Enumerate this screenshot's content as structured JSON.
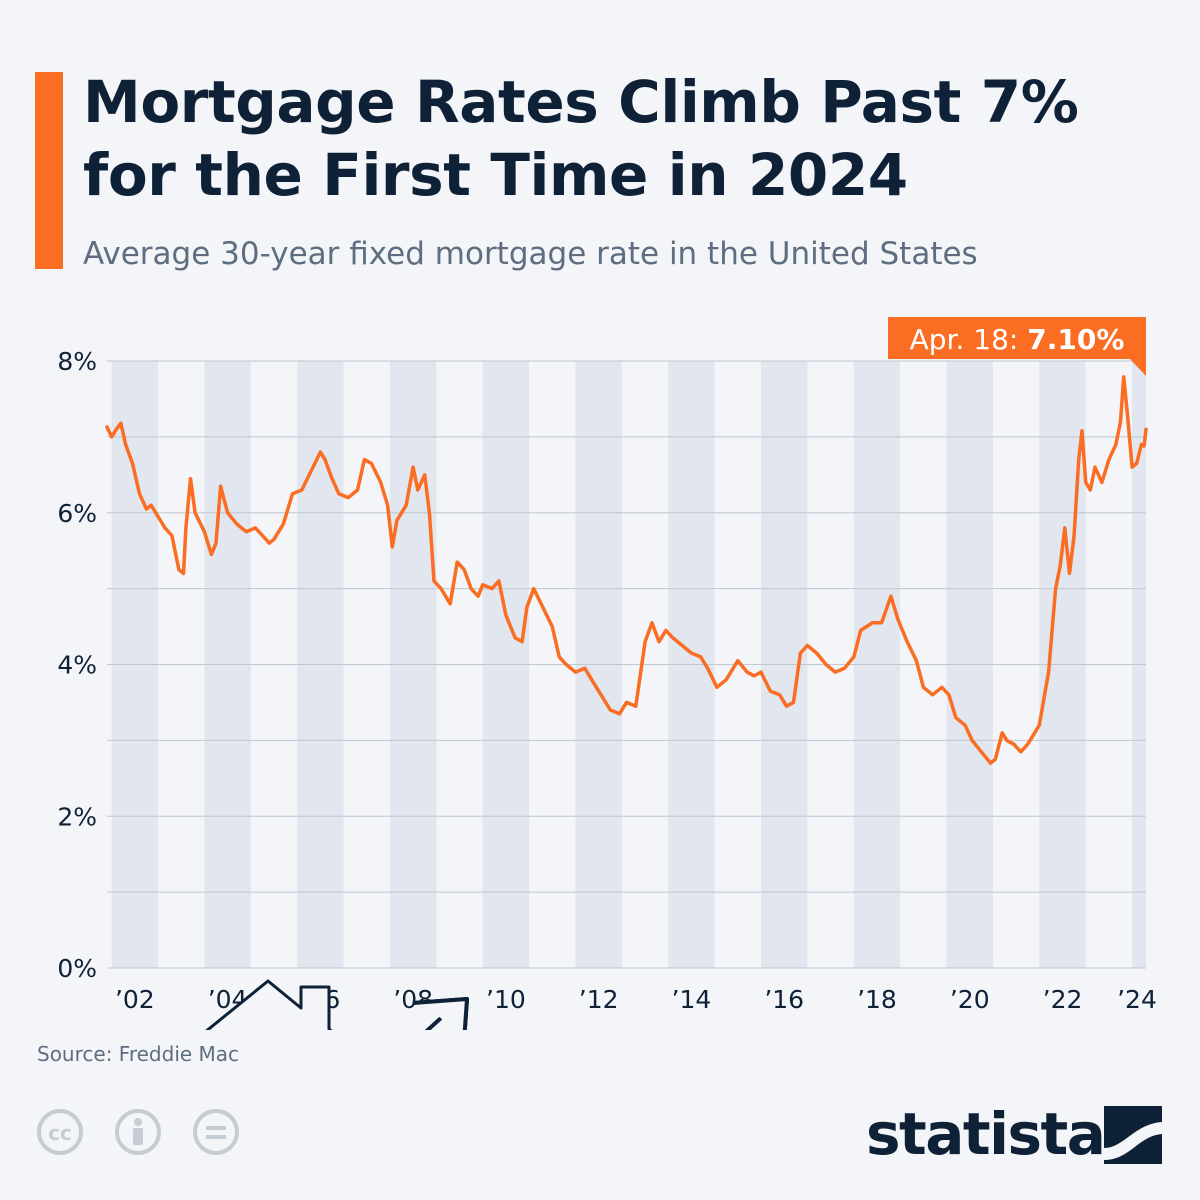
{
  "header": {
    "title": "Mortgage Rates Climb Past 7% for the First Time in 2024",
    "subtitle": "Average 30-year fixed mortgage rate in the United States"
  },
  "footer": {
    "source": "Source: Freddie Mac",
    "brand": "statista",
    "license_icons": [
      "cc-icon",
      "attribution-icon",
      "no-derivatives-icon"
    ]
  },
  "colors": {
    "accent": "#fa6d22",
    "title": "#0f2137",
    "text_secondary": "#5e6e80",
    "band": "#e1e6ef",
    "grid": "#bfc7d1"
  },
  "chart_data": {
    "type": "line",
    "title": "",
    "xlabel": "",
    "ylabel": "",
    "x_range": [
      2001.9,
      2024.3
    ],
    "ylim": [
      0,
      8
    ],
    "y_ticks": [
      0,
      2,
      4,
      6,
      8
    ],
    "y_tick_labels": [
      "0%",
      "2%",
      "4%",
      "6%",
      "8%"
    ],
    "x_ticks": [
      2002,
      2004,
      2006,
      2008,
      2010,
      2012,
      2014,
      2016,
      2018,
      2020,
      2022,
      2024
    ],
    "x_tick_labels": [
      "’02",
      "’04",
      "’06",
      "’08",
      "’10",
      "’12",
      "’14",
      "’16",
      "’18",
      "’20",
      "’22",
      "’24"
    ],
    "grid": true,
    "alternating_year_bands": true,
    "annotation": {
      "label": "Apr. 18: ",
      "value_label": "7.10%",
      "x": 2024.3,
      "y": 7.1
    },
    "series": [
      {
        "name": "",
        "color": "#fa6d22",
        "points": [
          [
            2001.9,
            7.13
          ],
          [
            2002.0,
            7.0
          ],
          [
            2002.1,
            7.1
          ],
          [
            2002.2,
            7.18
          ],
          [
            2002.3,
            6.9
          ],
          [
            2002.45,
            6.65
          ],
          [
            2002.6,
            6.25
          ],
          [
            2002.75,
            6.05
          ],
          [
            2002.85,
            6.1
          ],
          [
            2003.0,
            5.95
          ],
          [
            2003.15,
            5.8
          ],
          [
            2003.3,
            5.7
          ],
          [
            2003.45,
            5.25
          ],
          [
            2003.55,
            5.2
          ],
          [
            2003.6,
            5.8
          ],
          [
            2003.7,
            6.45
          ],
          [
            2003.8,
            6.0
          ],
          [
            2004.0,
            5.75
          ],
          [
            2004.15,
            5.45
          ],
          [
            2004.25,
            5.6
          ],
          [
            2004.35,
            6.35
          ],
          [
            2004.5,
            6.0
          ],
          [
            2004.7,
            5.85
          ],
          [
            2004.9,
            5.75
          ],
          [
            2005.1,
            5.8
          ],
          [
            2005.25,
            5.7
          ],
          [
            2005.4,
            5.6
          ],
          [
            2005.5,
            5.65
          ],
          [
            2005.7,
            5.85
          ],
          [
            2005.9,
            6.25
          ],
          [
            2006.1,
            6.3
          ],
          [
            2006.3,
            6.55
          ],
          [
            2006.5,
            6.8
          ],
          [
            2006.6,
            6.7
          ],
          [
            2006.75,
            6.45
          ],
          [
            2006.9,
            6.25
          ],
          [
            2007.1,
            6.2
          ],
          [
            2007.3,
            6.3
          ],
          [
            2007.45,
            6.7
          ],
          [
            2007.6,
            6.65
          ],
          [
            2007.8,
            6.4
          ],
          [
            2007.95,
            6.1
          ],
          [
            2008.05,
            5.55
          ],
          [
            2008.15,
            5.9
          ],
          [
            2008.35,
            6.1
          ],
          [
            2008.5,
            6.6
          ],
          [
            2008.6,
            6.3
          ],
          [
            2008.75,
            6.5
          ],
          [
            2008.85,
            6.0
          ],
          [
            2008.95,
            5.1
          ],
          [
            2009.1,
            5.0
          ],
          [
            2009.3,
            4.8
          ],
          [
            2009.45,
            5.35
          ],
          [
            2009.6,
            5.25
          ],
          [
            2009.75,
            5.0
          ],
          [
            2009.9,
            4.9
          ],
          [
            2010.0,
            5.05
          ],
          [
            2010.2,
            5.0
          ],
          [
            2010.35,
            5.1
          ],
          [
            2010.5,
            4.65
          ],
          [
            2010.7,
            4.35
          ],
          [
            2010.85,
            4.3
          ],
          [
            2010.95,
            4.75
          ],
          [
            2011.1,
            5.0
          ],
          [
            2011.3,
            4.75
          ],
          [
            2011.5,
            4.5
          ],
          [
            2011.65,
            4.1
          ],
          [
            2011.8,
            4.0
          ],
          [
            2012.0,
            3.9
          ],
          [
            2012.2,
            3.95
          ],
          [
            2012.35,
            3.8
          ],
          [
            2012.55,
            3.6
          ],
          [
            2012.75,
            3.4
          ],
          [
            2012.95,
            3.35
          ],
          [
            2013.1,
            3.5
          ],
          [
            2013.3,
            3.45
          ],
          [
            2013.5,
            4.3
          ],
          [
            2013.65,
            4.55
          ],
          [
            2013.8,
            4.3
          ],
          [
            2013.95,
            4.45
          ],
          [
            2014.1,
            4.35
          ],
          [
            2014.3,
            4.25
          ],
          [
            2014.5,
            4.15
          ],
          [
            2014.7,
            4.1
          ],
          [
            2014.85,
            3.95
          ],
          [
            2015.05,
            3.7
          ],
          [
            2015.25,
            3.8
          ],
          [
            2015.5,
            4.05
          ],
          [
            2015.7,
            3.9
          ],
          [
            2015.85,
            3.85
          ],
          [
            2016.0,
            3.9
          ],
          [
            2016.2,
            3.65
          ],
          [
            2016.4,
            3.6
          ],
          [
            2016.55,
            3.45
          ],
          [
            2016.7,
            3.5
          ],
          [
            2016.85,
            4.15
          ],
          [
            2017.0,
            4.25
          ],
          [
            2017.2,
            4.15
          ],
          [
            2017.4,
            4.0
          ],
          [
            2017.6,
            3.9
          ],
          [
            2017.8,
            3.95
          ],
          [
            2018.0,
            4.1
          ],
          [
            2018.15,
            4.45
          ],
          [
            2018.4,
            4.55
          ],
          [
            2018.6,
            4.55
          ],
          [
            2018.8,
            4.9
          ],
          [
            2018.95,
            4.6
          ],
          [
            2019.15,
            4.3
          ],
          [
            2019.35,
            4.05
          ],
          [
            2019.5,
            3.7
          ],
          [
            2019.7,
            3.6
          ],
          [
            2019.9,
            3.7
          ],
          [
            2020.05,
            3.6
          ],
          [
            2020.2,
            3.3
          ],
          [
            2020.4,
            3.2
          ],
          [
            2020.55,
            3.0
          ],
          [
            2020.75,
            2.85
          ],
          [
            2020.95,
            2.7
          ],
          [
            2021.05,
            2.75
          ],
          [
            2021.2,
            3.1
          ],
          [
            2021.3,
            3.0
          ],
          [
            2021.45,
            2.95
          ],
          [
            2021.6,
            2.85
          ],
          [
            2021.75,
            2.95
          ],
          [
            2021.9,
            3.1
          ],
          [
            2022.0,
            3.2
          ],
          [
            2022.2,
            3.9
          ],
          [
            2022.35,
            5.0
          ],
          [
            2022.45,
            5.3
          ],
          [
            2022.55,
            5.8
          ],
          [
            2022.65,
            5.2
          ],
          [
            2022.75,
            5.7
          ],
          [
            2022.85,
            6.7
          ],
          [
            2022.92,
            7.08
          ],
          [
            2023.0,
            6.4
          ],
          [
            2023.1,
            6.3
          ],
          [
            2023.2,
            6.6
          ],
          [
            2023.35,
            6.4
          ],
          [
            2023.5,
            6.7
          ],
          [
            2023.65,
            6.9
          ],
          [
            2023.75,
            7.2
          ],
          [
            2023.82,
            7.79
          ],
          [
            2023.9,
            7.3
          ],
          [
            2024.0,
            6.6
          ],
          [
            2024.1,
            6.65
          ],
          [
            2024.2,
            6.9
          ],
          [
            2024.26,
            6.88
          ],
          [
            2024.3,
            7.1
          ]
        ]
      }
    ]
  }
}
